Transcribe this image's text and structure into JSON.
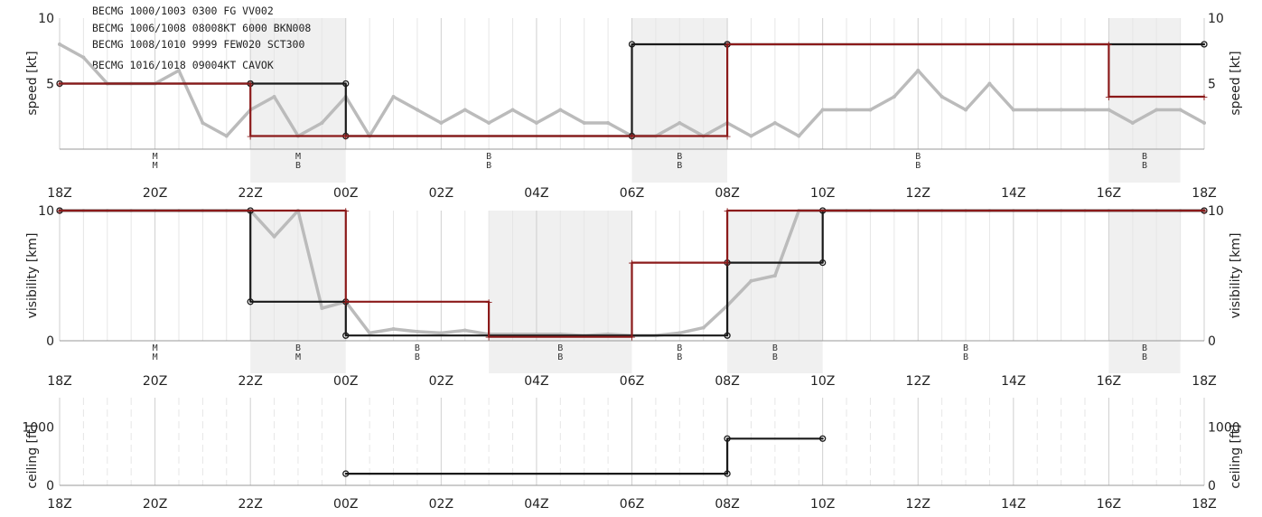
{
  "chart_data": [
    {
      "type": "line",
      "ylabel": "speed [kt]",
      "ylim": [
        0,
        10
      ],
      "yticks": [
        5,
        10
      ],
      "x_tick_labels": [
        "18Z",
        "20Z",
        "22Z",
        "00Z",
        "02Z",
        "04Z",
        "06Z",
        "08Z",
        "10Z",
        "12Z",
        "14Z",
        "16Z",
        "18Z"
      ],
      "annotations": [
        "BECMG 1000/1003 0300 FG VV002",
        "BECMG 1006/1008 08008KT 6000 BKN008",
        "BECMG 1008/1010 9999 FEW020 SCT300",
        "BECMG 1016/1018 09004KT CAVOK"
      ],
      "shaded_hours": [
        [
          4,
          6
        ],
        [
          12,
          14
        ],
        [
          22,
          23.5
        ]
      ],
      "category_labels": [
        {
          "hour": 2,
          "top": "M",
          "bottom": "M"
        },
        {
          "hour": 5,
          "top": "M",
          "bottom": "B"
        },
        {
          "hour": 9,
          "top": "B",
          "bottom": "B"
        },
        {
          "hour": 13,
          "top": "B",
          "bottom": "B"
        },
        {
          "hour": 18,
          "top": "B",
          "bottom": "B"
        },
        {
          "hour": 22.75,
          "top": "B",
          "bottom": "B"
        }
      ],
      "series": [
        {
          "color": "#bbbbbb",
          "style": "observed",
          "x": [
            0,
            0.5,
            1,
            1.5,
            2,
            2.5,
            3,
            3.5,
            4,
            4.5,
            5,
            5.5,
            6,
            6.5,
            7,
            7.5,
            8,
            8.5,
            9,
            9.5,
            10,
            10.5,
            11,
            11.5,
            12,
            12.5,
            13,
            13.5,
            14,
            14.5,
            15,
            15.5,
            16,
            16.5,
            17,
            17.5,
            18,
            18.5,
            19,
            19.5,
            20,
            20.5,
            21,
            21.5,
            22,
            22.5,
            23,
            23.5,
            24
          ],
          "y": [
            8,
            7,
            5,
            5,
            5,
            6,
            2,
            1,
            3,
            4,
            1,
            2,
            4,
            1,
            4,
            3,
            2,
            3,
            2,
            3,
            2,
            3,
            2,
            2,
            1,
            1,
            2,
            1,
            2,
            1,
            2,
            1,
            3,
            3,
            3,
            4,
            6,
            4,
            3,
            5,
            3,
            3,
            3,
            3,
            3,
            2,
            3,
            3,
            2
          ]
        },
        {
          "color": "#1a1a1a",
          "style": "step",
          "x": [
            0,
            4,
            4,
            6,
            6,
            12,
            12,
            14,
            14,
            24
          ],
          "y": [
            5,
            5,
            5,
            5,
            1,
            1,
            8,
            8,
            8,
            8
          ]
        },
        {
          "color": "#8b1a1a",
          "style": "step",
          "x": [
            0,
            4,
            4,
            6,
            6,
            12,
            12,
            14,
            14,
            22,
            22,
            24
          ],
          "y": [
            5,
            5,
            1,
            1,
            1,
            1,
            1,
            1,
            8,
            8,
            4,
            4
          ]
        }
      ]
    },
    {
      "type": "line",
      "ylabel": "visibility [km]",
      "ylim": [
        0,
        10
      ],
      "yticks": [
        0,
        10
      ],
      "x_tick_labels": [
        "18Z",
        "20Z",
        "22Z",
        "00Z",
        "02Z",
        "04Z",
        "06Z",
        "08Z",
        "10Z",
        "12Z",
        "14Z",
        "16Z",
        "18Z"
      ],
      "shaded_hours": [
        [
          4,
          6
        ],
        [
          9,
          12
        ],
        [
          14,
          16
        ],
        [
          22,
          23.5
        ]
      ],
      "category_labels": [
        {
          "hour": 2,
          "top": "M",
          "bottom": "M"
        },
        {
          "hour": 5,
          "top": "B",
          "bottom": "M"
        },
        {
          "hour": 7.5,
          "top": "B",
          "bottom": "B"
        },
        {
          "hour": 10.5,
          "top": "B",
          "bottom": "B"
        },
        {
          "hour": 13,
          "top": "B",
          "bottom": "B"
        },
        {
          "hour": 15,
          "top": "B",
          "bottom": "B"
        },
        {
          "hour": 19,
          "top": "B",
          "bottom": "B"
        },
        {
          "hour": 22.75,
          "top": "B",
          "bottom": "B"
        }
      ],
      "series": [
        {
          "color": "#bbbbbb",
          "style": "observed",
          "x": [
            0,
            0.5,
            1,
            1.5,
            2,
            2.5,
            3,
            3.5,
            4,
            4.5,
            5,
            5.5,
            6,
            6.5,
            7,
            7.5,
            8,
            8.5,
            9,
            9.5,
            10,
            10.5,
            11,
            11.5,
            12,
            12.5,
            13,
            13.5,
            14,
            14.5,
            15,
            15.5,
            16,
            16.5,
            17,
            17.5,
            18,
            18.5,
            19,
            19.5,
            20,
            20.5,
            21,
            21.5,
            22,
            22.5,
            23,
            23.5,
            24
          ],
          "y": [
            10,
            10,
            10,
            10,
            10,
            10,
            10,
            10,
            10,
            8,
            10,
            2.5,
            3,
            0.6,
            0.9,
            0.7,
            0.6,
            0.8,
            0.5,
            0.5,
            0.5,
            0.5,
            0.4,
            0.5,
            0.4,
            0.4,
            0.6,
            1,
            2.7,
            4.6,
            5,
            10,
            10,
            10,
            10,
            10,
            10,
            10,
            10,
            10,
            10,
            10,
            10,
            10,
            10,
            10,
            10,
            10,
            10
          ]
        },
        {
          "color": "#1a1a1a",
          "style": "step",
          "x": [
            0,
            4,
            4,
            6,
            6,
            14,
            14,
            16,
            16,
            24
          ],
          "y": [
            10,
            10,
            3,
            3,
            0.4,
            0.4,
            6,
            6,
            10,
            10
          ]
        },
        {
          "color": "#8b1a1a",
          "style": "step",
          "x": [
            0,
            6,
            6,
            9,
            9,
            12,
            12,
            14,
            14,
            24
          ],
          "y": [
            10,
            10,
            3,
            3,
            0.3,
            0.3,
            6,
            6,
            10,
            10
          ]
        }
      ]
    },
    {
      "type": "line",
      "ylabel": "ceiling [ft]",
      "ylim": [
        0,
        1500
      ],
      "yticks": [
        0,
        1000
      ],
      "x_tick_labels": [
        "18Z",
        "20Z",
        "22Z",
        "00Z",
        "02Z",
        "04Z",
        "06Z",
        "08Z",
        "10Z",
        "12Z",
        "14Z",
        "16Z",
        "18Z"
      ],
      "shaded_hours": [],
      "category_labels": [],
      "series": [
        {
          "color": "#1a1a1a",
          "style": "step",
          "x": [
            6,
            14,
            14,
            16
          ],
          "y": [
            200,
            200,
            800,
            800
          ]
        }
      ]
    }
  ]
}
